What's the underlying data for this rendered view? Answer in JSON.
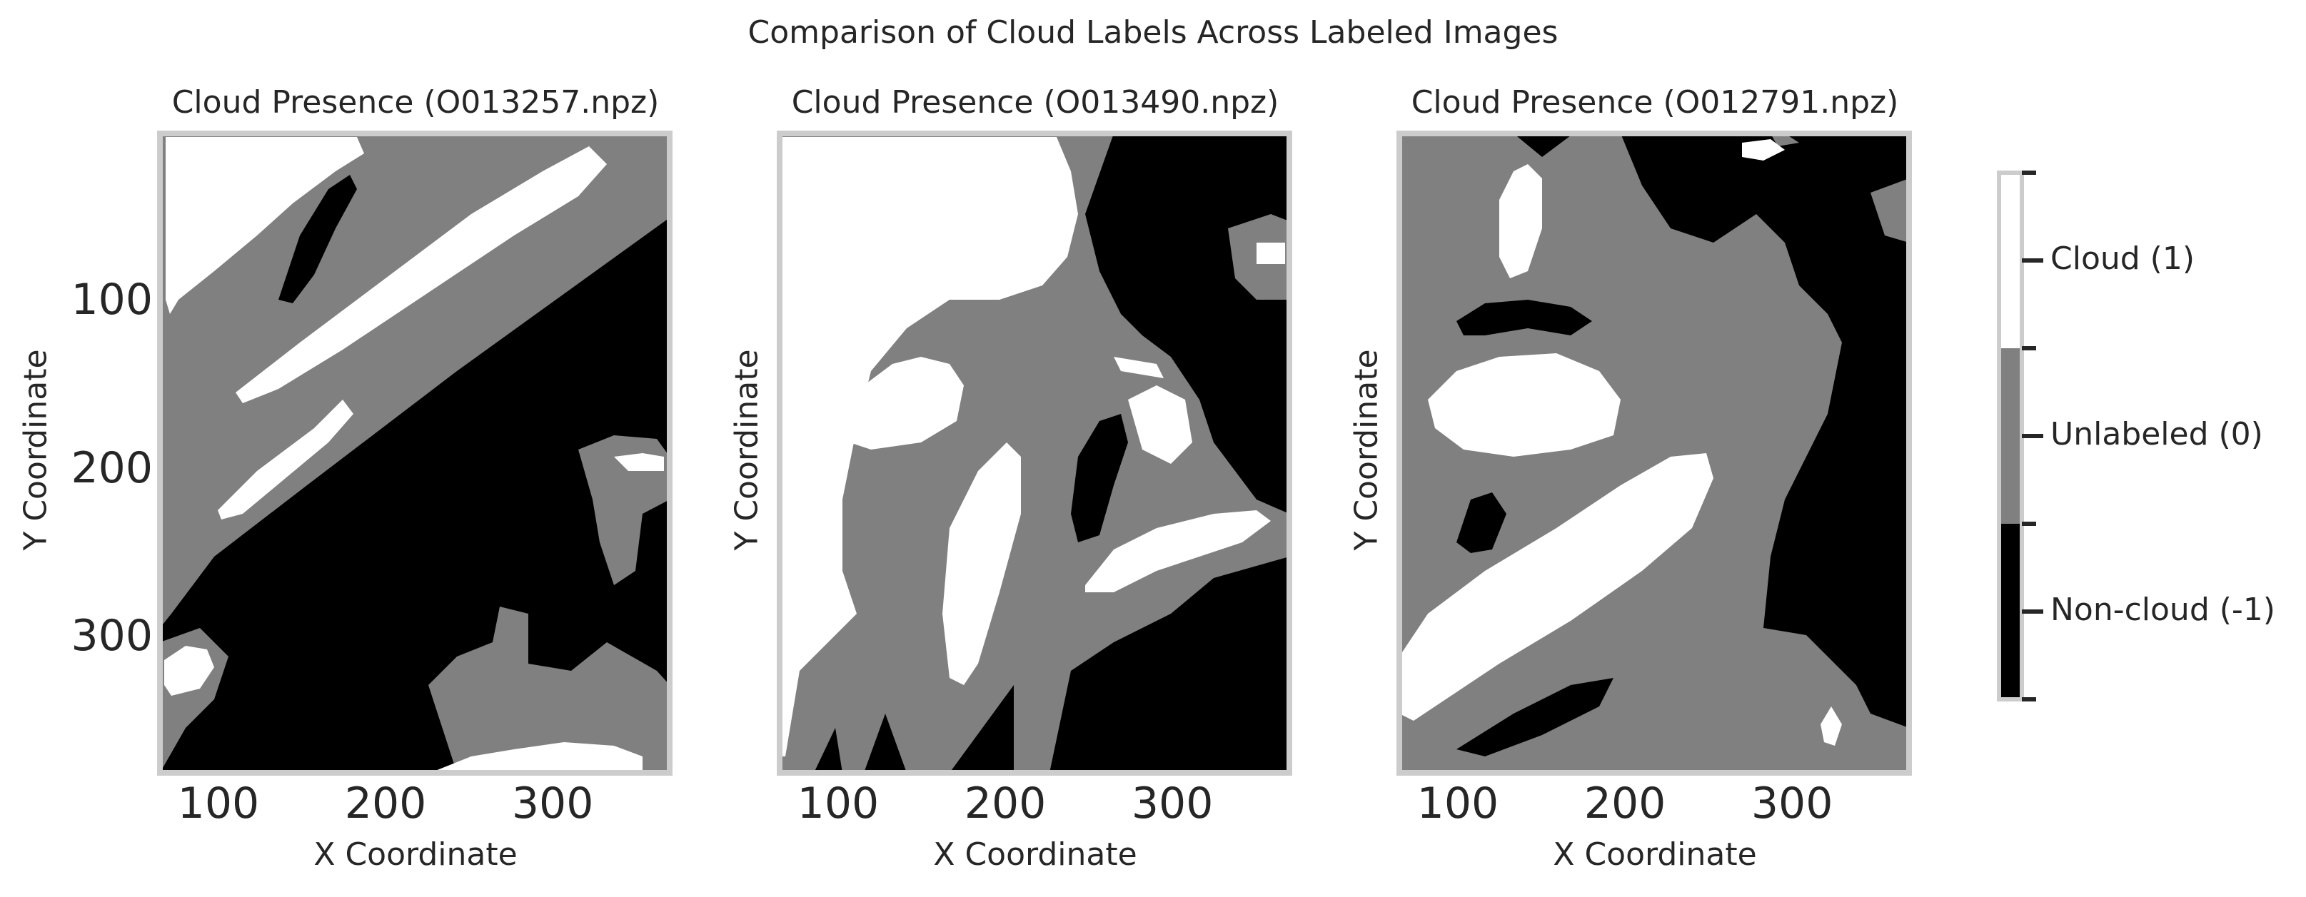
{
  "title": "Comparison of Cloud Labels Across Labeled Images",
  "colors": {
    "non_cloud": "#000000",
    "unlabeled": "#808080",
    "cloud": "#ffffff",
    "frame": "#cccccc"
  },
  "colorbar": {
    "entries": [
      {
        "label": "Cloud (1)",
        "value": 1,
        "color": "#ffffff"
      },
      {
        "label": "Unlabeled (0)",
        "value": 0,
        "color": "#808080"
      },
      {
        "label": "Non-cloud (-1)",
        "value": -1,
        "color": "#000000"
      }
    ]
  },
  "chart_data": [
    {
      "type": "heatmap",
      "title": "Cloud Presence (O013257.npz)",
      "xlabel": "X Coordinate",
      "ylabel": "Y Coordinate",
      "xlim": [
        65,
        370
      ],
      "ylim": [
        380,
        0
      ],
      "xticks": [
        100,
        200,
        300
      ],
      "yticks": [
        100,
        200,
        300
      ],
      "classes": [
        -1,
        0,
        1
      ]
    },
    {
      "type": "heatmap",
      "title": "Cloud Presence (O013490.npz)",
      "xlabel": "X Coordinate",
      "ylabel": "Y Coordinate",
      "xlim": [
        65,
        370
      ],
      "ylim": [
        380,
        0
      ],
      "xticks": [
        100,
        200,
        300
      ],
      "yticks": [],
      "classes": [
        -1,
        0,
        1
      ]
    },
    {
      "type": "heatmap",
      "title": "Cloud Presence (O012791.npz)",
      "xlabel": "X Coordinate",
      "ylabel": "Y Coordinate",
      "xlim": [
        65,
        370
      ],
      "ylim": [
        380,
        0
      ],
      "xticks": [
        100,
        200,
        300
      ],
      "yticks": [],
      "classes": [
        -1,
        0,
        1
      ]
    }
  ]
}
